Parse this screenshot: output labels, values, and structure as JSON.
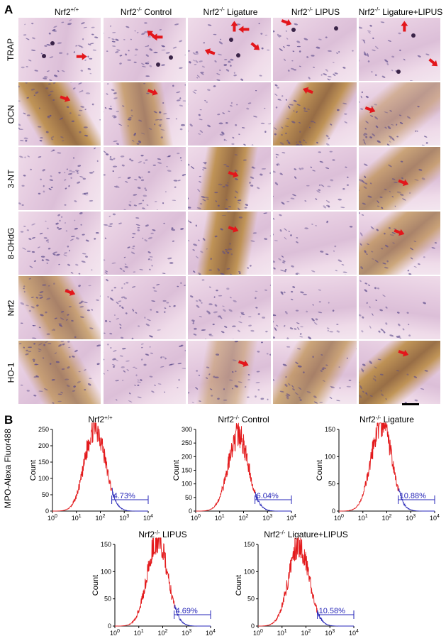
{
  "panel_a": {
    "letter": "A",
    "columns": [
      {
        "pre": "Nrf2",
        "sup": "+/+",
        "post": ""
      },
      {
        "pre": "Nrf2",
        "sup": "-/-",
        "post": " Control"
      },
      {
        "pre": "Nrf2",
        "sup": "-/-",
        "post": " Ligature"
      },
      {
        "pre": "Nrf2",
        "sup": "-/-",
        "post": " LIPUS"
      },
      {
        "pre": "Nrf2",
        "sup": "-/-",
        "post": " Ligature+LIPUS"
      }
    ],
    "rows": [
      "TRAP",
      "OCN",
      "3-NT",
      "8-OHdG",
      "Nrf2",
      "HO-1"
    ],
    "colors": {
      "tissue": "#e3c8de",
      "bone": "#efdbe9",
      "stain_brown": "#b98a3f",
      "stain_dark": "#8a5d2b",
      "nuclei": "#5a4a8a",
      "arrow": "#e3161b"
    }
  },
  "panel_b": {
    "letter": "B",
    "y_axis_label": "MPO-Alexa Fluor488",
    "colors": {
      "main": "#e31a1c",
      "gate": "#2626b8"
    },
    "chart_data": [
      {
        "type": "histogram",
        "title_pre": "Nrf2",
        "title_sup": "+/+",
        "title_post": "",
        "ylabel": "Count",
        "ylim": [
          0,
          250
        ],
        "yticks": [
          0,
          50,
          100,
          150,
          200,
          250
        ],
        "xscale": "log",
        "xlim": [
          1,
          10000
        ],
        "xticks": [
          "0",
          "1",
          "2",
          "3",
          "4"
        ],
        "gate_percent": "4.73%",
        "gate_range": [
          300,
          10000
        ],
        "peak_x": 60,
        "peak_count": 260
      },
      {
        "type": "histogram",
        "title_pre": "Nrf2",
        "title_sup": "-/-",
        "title_post": " Control",
        "ylabel": "Count",
        "ylim": [
          0,
          300
        ],
        "yticks": [
          0,
          50,
          100,
          150,
          200,
          250,
          300
        ],
        "xscale": "log",
        "xlim": [
          1,
          10000
        ],
        "xticks": [
          "0",
          "1",
          "2",
          "3",
          "4"
        ],
        "gate_percent": "6.04%",
        "gate_range": [
          300,
          10000
        ],
        "peak_x": 60,
        "peak_count": 280
      },
      {
        "type": "histogram",
        "title_pre": "Nrf2",
        "title_sup": "-/-",
        "title_post": " Ligature",
        "ylabel": "Count",
        "ylim": [
          0,
          150
        ],
        "yticks": [
          0,
          50,
          100,
          150
        ],
        "xscale": "log",
        "xlim": [
          1,
          10000
        ],
        "xticks": [
          "0",
          "1",
          "2",
          "3",
          "4"
        ],
        "gate_percent": "10.88%",
        "gate_range": [
          300,
          10000
        ],
        "peak_x": 60,
        "peak_count": 165
      },
      {
        "type": "histogram",
        "title_pre": "Nrf2",
        "title_sup": "-/-",
        "title_post": " LIPUS",
        "ylabel": "Count",
        "ylim": [
          0,
          150
        ],
        "yticks": [
          0,
          50,
          100,
          150
        ],
        "xscale": "log",
        "xlim": [
          1,
          10000
        ],
        "xticks": [
          "0",
          "1",
          "2",
          "3",
          "4"
        ],
        "gate_percent": "4.69%",
        "gate_range": [
          300,
          10000
        ],
        "peak_x": 60,
        "peak_count": 160
      },
      {
        "type": "histogram",
        "title_pre": "Nrf2",
        "title_sup": "-/-",
        "title_post": " Ligature+LIPUS",
        "ylabel": "Count",
        "ylim": [
          0,
          150
        ],
        "yticks": [
          0,
          50,
          100,
          150
        ],
        "xscale": "log",
        "xlim": [
          1,
          10000
        ],
        "xticks": [
          "0",
          "1",
          "2",
          "3",
          "4"
        ],
        "gate_percent": "10.58%",
        "gate_range": [
          300,
          10000
        ],
        "peak_x": 50,
        "peak_count": 150
      }
    ]
  }
}
